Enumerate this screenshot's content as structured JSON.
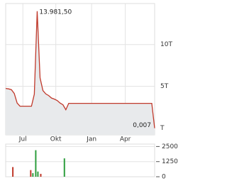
{
  "chart_data": [
    {
      "type": "line",
      "color": "#c0392b",
      "fill": "#e8eaec",
      "grid": true,
      "values": [
        4746,
        4700,
        4600,
        4150,
        3000,
        2627,
        2627,
        2627,
        2627,
        2627,
        4068,
        13981.5,
        6017,
        4500,
        4100,
        3900,
        3600,
        3475,
        3300,
        3000,
        2797,
        2203,
        2966,
        2966,
        2966,
        2966,
        2966,
        2966,
        2966,
        2966,
        2966,
        2966,
        2966,
        2966,
        2966,
        2966,
        2966,
        2966,
        2966,
        2966,
        2966,
        2966,
        2966,
        2966,
        2966,
        2966,
        2966,
        2966,
        2966,
        2966,
        2966,
        2966,
        0.007
      ],
      "value_labels": [
        null,
        null,
        null,
        null,
        null,
        null,
        null,
        null,
        null,
        null,
        null,
        "13.981,50",
        null,
        null,
        null,
        null,
        null,
        null,
        null,
        null,
        null,
        null,
        null,
        null,
        null,
        null,
        null,
        null,
        null,
        null,
        null,
        null,
        null,
        null,
        null,
        null,
        null,
        null,
        null,
        null,
        null,
        null,
        null,
        null,
        null,
        null,
        null,
        null,
        null,
        null,
        null,
        null,
        "0,007"
      ],
      "xlim": [
        0,
        52
      ],
      "ylim": [
        -800,
        14900
      ],
      "xticks": [
        {
          "value": 6,
          "label": "Jul"
        },
        {
          "value": 17.5,
          "label": "Okt"
        },
        {
          "value": 30,
          "label": "Jan"
        },
        {
          "value": 41.75,
          "label": "Apr"
        }
      ],
      "yticks": [
        {
          "value": 0,
          "label": "T"
        },
        {
          "value": 5000,
          "label": "5T"
        },
        {
          "value": 10000,
          "label": "10T"
        }
      ]
    },
    {
      "type": "bar",
      "grid": true,
      "x": [
        2.5,
        8.75,
        9.5,
        10.5,
        11.25,
        12.25,
        20.5
      ],
      "values": [
        800,
        550,
        300,
        2195,
        430,
        240,
        1520
      ],
      "colors": [
        "#c0392b",
        "#c0392b",
        "#2e9e3e",
        "#2e9e3e",
        "#2e9e3e",
        "#c0392b",
        "#2e9e3e"
      ],
      "xlim": [
        0,
        52
      ],
      "ylim": [
        0,
        2700
      ],
      "yticks": [
        0,
        1250,
        2500
      ]
    }
  ]
}
